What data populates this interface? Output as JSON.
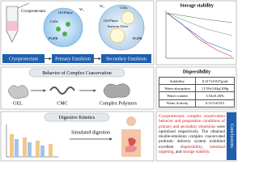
{
  "emulsion": {
    "tube_label": "Cryoprotectant",
    "primary_labels": [
      "Oil Phase",
      "Cells",
      "PGPR",
      "W₁"
    ],
    "secondary_labels": [
      "W₂",
      "Cells",
      "Oil Phase",
      "Sucrose Ester",
      "PGPR"
    ],
    "steps": [
      "Cryoprotectant",
      "Primary Emulsion",
      "Secondary Emulsion"
    ]
  },
  "storage": {
    "title": "Storage stability"
  },
  "coacervation": {
    "title": "Behavior of Complex Coacervation",
    "labels": [
      "GEL",
      "CMC",
      "Complex Polymers"
    ]
  },
  "dispersibility": {
    "title": "Dispersibility",
    "rows": [
      [
        "Solubility",
        "0.217±0.027g/ml"
      ],
      [
        "Water absorption",
        "11.59±3.64g/100g"
      ],
      [
        "Water content",
        "3.54±0.26%"
      ],
      [
        "Water Activity",
        "0.317±0.015"
      ]
    ]
  },
  "digestion": {
    "title": "Digestive Kinetics",
    "label": "Simulated digestion"
  },
  "conclusions": {
    "title": "Conclusions",
    "text": [
      "Cryoprotectant, complex coacervation behavior and preparation conditions of primary and secondary emulsions",
      " were optimized respectively. The obtained double-emulsion complex coacervated probiotic delivery system exhibited excellent ",
      "dispersibility",
      ", ",
      "intestinal targeting",
      ", and ",
      "storage stability",
      "."
    ]
  }
}
